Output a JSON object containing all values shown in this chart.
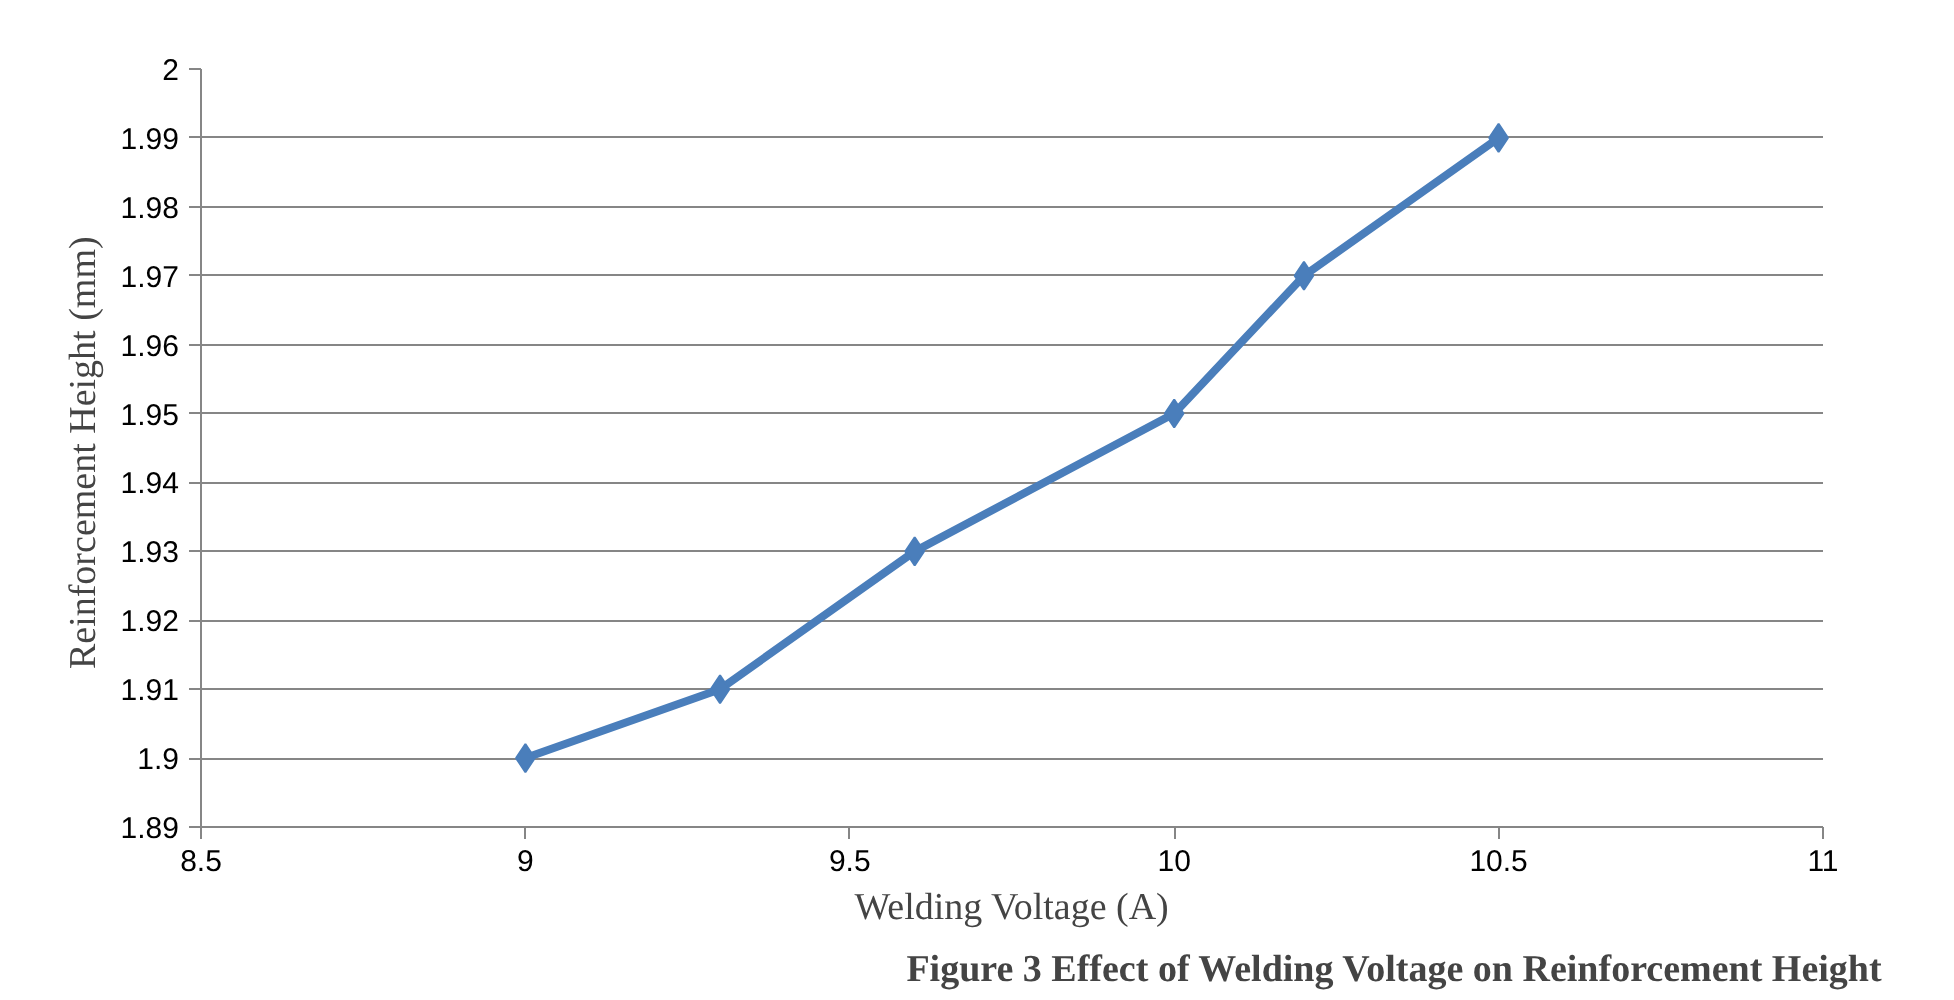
{
  "chart_data": {
    "type": "line",
    "xlabel": "Welding Voltage (A)",
    "ylabel": "Reinforcement  Height (mm)",
    "x": [
      9,
      9.3,
      9.6,
      10,
      10.2,
      10.5
    ],
    "series": [
      {
        "color": "#4a7ebb",
        "values": [
          1.9,
          1.91,
          1.93,
          1.95,
          1.97,
          1.99
        ]
      }
    ],
    "xlim": [
      8.5,
      11
    ],
    "xticks": [
      8.5,
      9,
      9.5,
      10,
      10.5,
      11
    ],
    "ylim": [
      1.89,
      2
    ],
    "yticks": [
      1.89,
      1.9,
      1.91,
      1.92,
      1.93,
      1.94,
      1.95,
      1.96,
      1.97,
      1.98,
      1.99,
      2
    ],
    "grid": "y",
    "marker": "diamond",
    "line_style": "solid",
    "annotations": [
      "Figure 3 Effect of Welding Voltage on Reinforcement Height"
    ]
  }
}
